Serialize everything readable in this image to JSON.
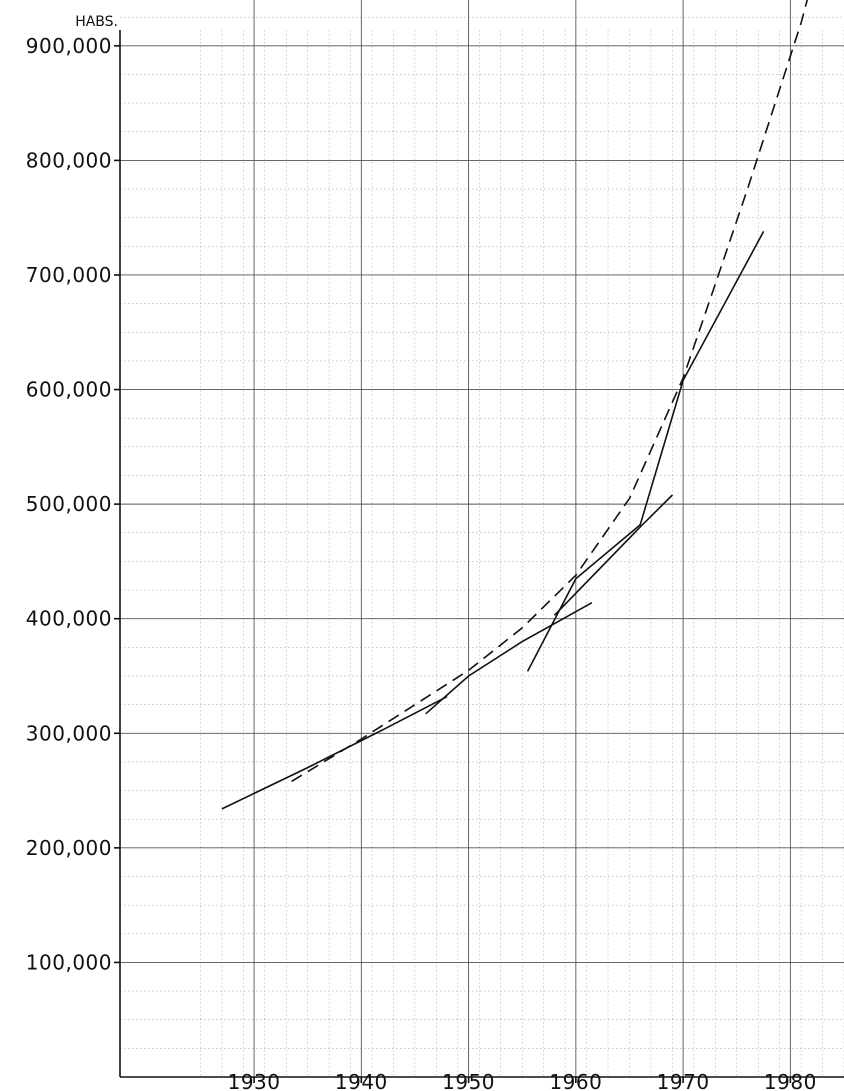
{
  "chart_data": {
    "type": "line",
    "title": "",
    "unit_label": "HABS.",
    "xlabel": "",
    "ylabel": "",
    "xlim": [
      1917.5,
      1985
    ],
    "ylim": [
      0,
      940000
    ],
    "grid": true,
    "x_ticks": [
      1930,
      1940,
      1950,
      1960,
      1970,
      1980
    ],
    "x_tick_labels": [
      "1930",
      "1940",
      "1950",
      "1960",
      "1970",
      "1980"
    ],
    "y_ticks": [
      100000,
      200000,
      300000,
      400000,
      500000,
      600000,
      700000,
      800000,
      900000
    ],
    "y_tick_labels": [
      "100,000",
      "200,000",
      "300,000",
      "400,000",
      "500,000",
      "600,000",
      "700,000",
      "800,000",
      "900,000"
    ],
    "series": [
      {
        "style": "dashed",
        "points": [
          [
            1933.5,
            258000
          ],
          [
            1940,
            295000
          ],
          [
            1945,
            325000
          ],
          [
            1950,
            355000
          ],
          [
            1955,
            392000
          ],
          [
            1960,
            438000
          ],
          [
            1965,
            505000
          ],
          [
            1970,
            610000
          ],
          [
            1973,
            692000
          ],
          [
            1976,
            775000
          ],
          [
            1979,
            862000
          ],
          [
            1981,
            920000
          ],
          [
            1983,
            990000
          ]
        ]
      },
      {
        "style": "solid",
        "points": [
          [
            1927,
            234000
          ],
          [
            1935,
            270000
          ],
          [
            1942,
            303000
          ],
          [
            1948,
            332000
          ]
        ]
      },
      {
        "style": "solid",
        "points": [
          [
            1946,
            317000
          ],
          [
            1950,
            350000
          ],
          [
            1955,
            380000
          ],
          [
            1961.5,
            414000
          ]
        ]
      },
      {
        "style": "solid",
        "points": [
          [
            1958,
            403000
          ],
          [
            1966,
            480000
          ],
          [
            1969,
            508000
          ]
        ]
      },
      {
        "style": "solid",
        "points": [
          [
            1955.5,
            354000
          ],
          [
            1960,
            435000
          ],
          [
            1966,
            482000
          ],
          [
            1970,
            608000
          ],
          [
            1977.5,
            738000
          ]
        ]
      }
    ]
  }
}
